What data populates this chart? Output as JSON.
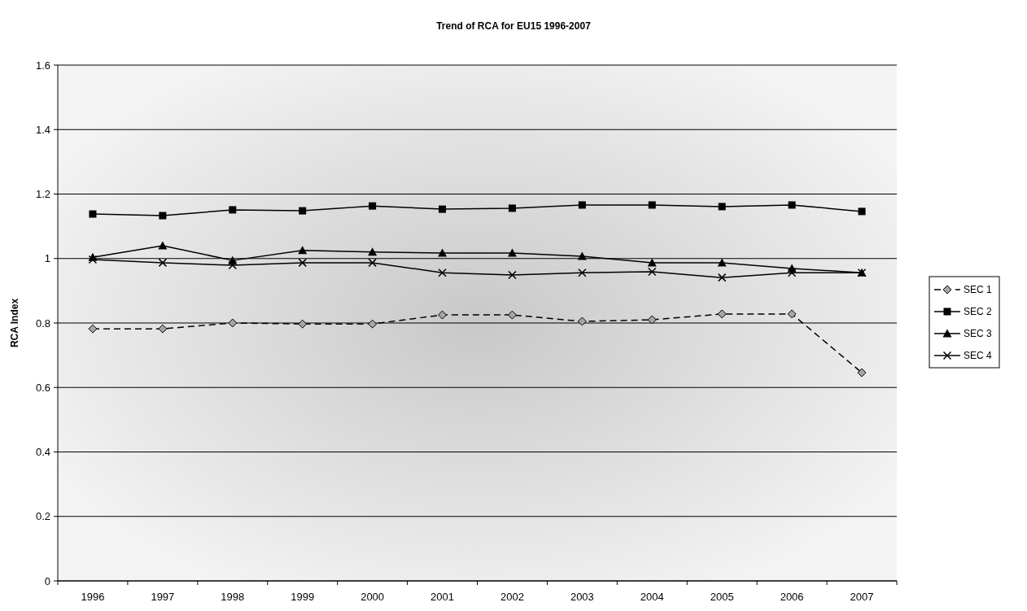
{
  "chart_data": {
    "type": "line",
    "title": "Trend of RCA for EU15 1996-2007",
    "ylabel": "RCA Index",
    "categories": [
      "1996",
      "1997",
      "1998",
      "1999",
      "2000",
      "2001",
      "2002",
      "2003",
      "2004",
      "2005",
      "2006",
      "2007"
    ],
    "series": [
      {
        "name": "SEC 1",
        "color": "#000000",
        "marker": "diamond",
        "line_style": "dashed",
        "values": [
          0.782,
          0.782,
          0.8,
          0.797,
          0.797,
          0.825,
          0.825,
          0.805,
          0.81,
          0.828,
          0.828,
          0.646
        ]
      },
      {
        "name": "SEC 2",
        "color": "#000000",
        "marker": "square",
        "line_style": "solid",
        "values": [
          1.138,
          1.133,
          1.151,
          1.148,
          1.163,
          1.153,
          1.156,
          1.166,
          1.166,
          1.161,
          1.166,
          1.146
        ]
      },
      {
        "name": "SEC 3",
        "color": "#000000",
        "marker": "triangle",
        "line_style": "solid",
        "values": [
          1.004,
          1.04,
          0.994,
          1.025,
          1.02,
          1.017,
          1.017,
          1.007,
          0.987,
          0.987,
          0.969,
          0.956
        ]
      },
      {
        "name": "SEC 4",
        "color": "#000000",
        "marker": "cross",
        "line_style": "solid",
        "values": [
          0.997,
          0.987,
          0.979,
          0.987,
          0.987,
          0.956,
          0.949,
          0.956,
          0.959,
          0.941,
          0.956,
          0.956
        ]
      }
    ],
    "ylim": [
      0,
      1.6
    ],
    "yticks": [
      0,
      0.2,
      0.4,
      0.6,
      0.8,
      1,
      1.2,
      1.4,
      1.6
    ],
    "grid": "y",
    "legend": "right"
  }
}
